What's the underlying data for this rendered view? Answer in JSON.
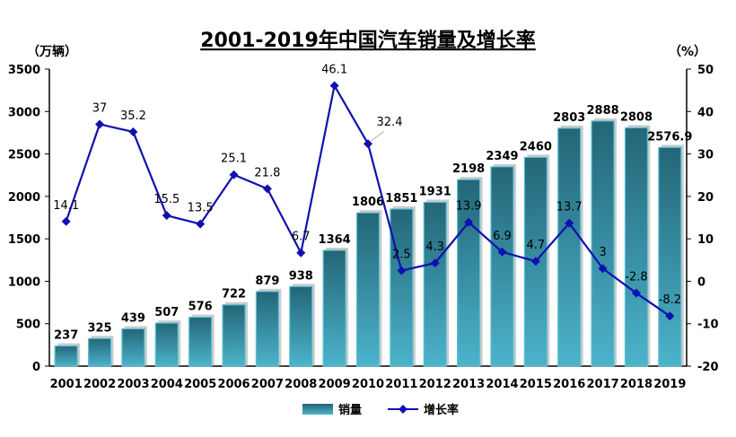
{
  "chart_data": {
    "type": "bar+line",
    "title": "2001-2019年中国汽车销量及增长率",
    "ylabel_left": "（万辆）",
    "ylabel_right": "（%）",
    "ylim_left": [
      0,
      3500
    ],
    "ylim_right": [
      -20,
      50
    ],
    "yticks_left": [
      "0",
      "500",
      "1000",
      "1500",
      "2000",
      "2500",
      "3000",
      "3500"
    ],
    "yticks_right": [
      "-20",
      "-10",
      "0",
      "10",
      "20",
      "30",
      "40",
      "50"
    ],
    "categories": [
      "2001",
      "2002",
      "2003",
      "2004",
      "2005",
      "2006",
      "2007",
      "2008",
      "2009",
      "2010",
      "2011",
      "2012",
      "2013",
      "2014",
      "2015",
      "2016",
      "2017",
      "2018",
      "2019"
    ],
    "series": [
      {
        "name": "销量",
        "type": "bar",
        "axis": "left",
        "color": "#2f8aa0",
        "values": [
          237,
          325,
          439,
          507,
          576,
          722,
          879,
          938,
          1364,
          1806,
          1851,
          1931,
          2198,
          2349,
          2460,
          2803,
          2888,
          2808,
          2576.9
        ],
        "labels": [
          "237",
          "325",
          "439",
          "507",
          "576",
          "722",
          "879",
          "938",
          "1364",
          "1806",
          "1851",
          "1931",
          "2198",
          "2349",
          "2460",
          "2803",
          "2888",
          "2808",
          "2576.9"
        ]
      },
      {
        "name": "增长率",
        "type": "line",
        "axis": "right",
        "color": "#1010b0",
        "values": [
          14.1,
          37,
          35.2,
          15.5,
          13.5,
          25.1,
          21.8,
          6.7,
          46.1,
          32.4,
          2.5,
          4.3,
          13.9,
          6.9,
          4.7,
          13.7,
          3,
          -2.8,
          -8.2
        ],
        "labels": [
          "14.1",
          "37",
          "35.2",
          "15.5",
          "13.5",
          "25.1",
          "21.8",
          "6.7",
          "46.1",
          "32.4",
          "2.5",
          "4.3",
          "13.9",
          "6.9",
          "4.7",
          "13.7",
          "3",
          "-2.8",
          "-8.2"
        ]
      }
    ],
    "grid": false,
    "legend": "bottom"
  }
}
